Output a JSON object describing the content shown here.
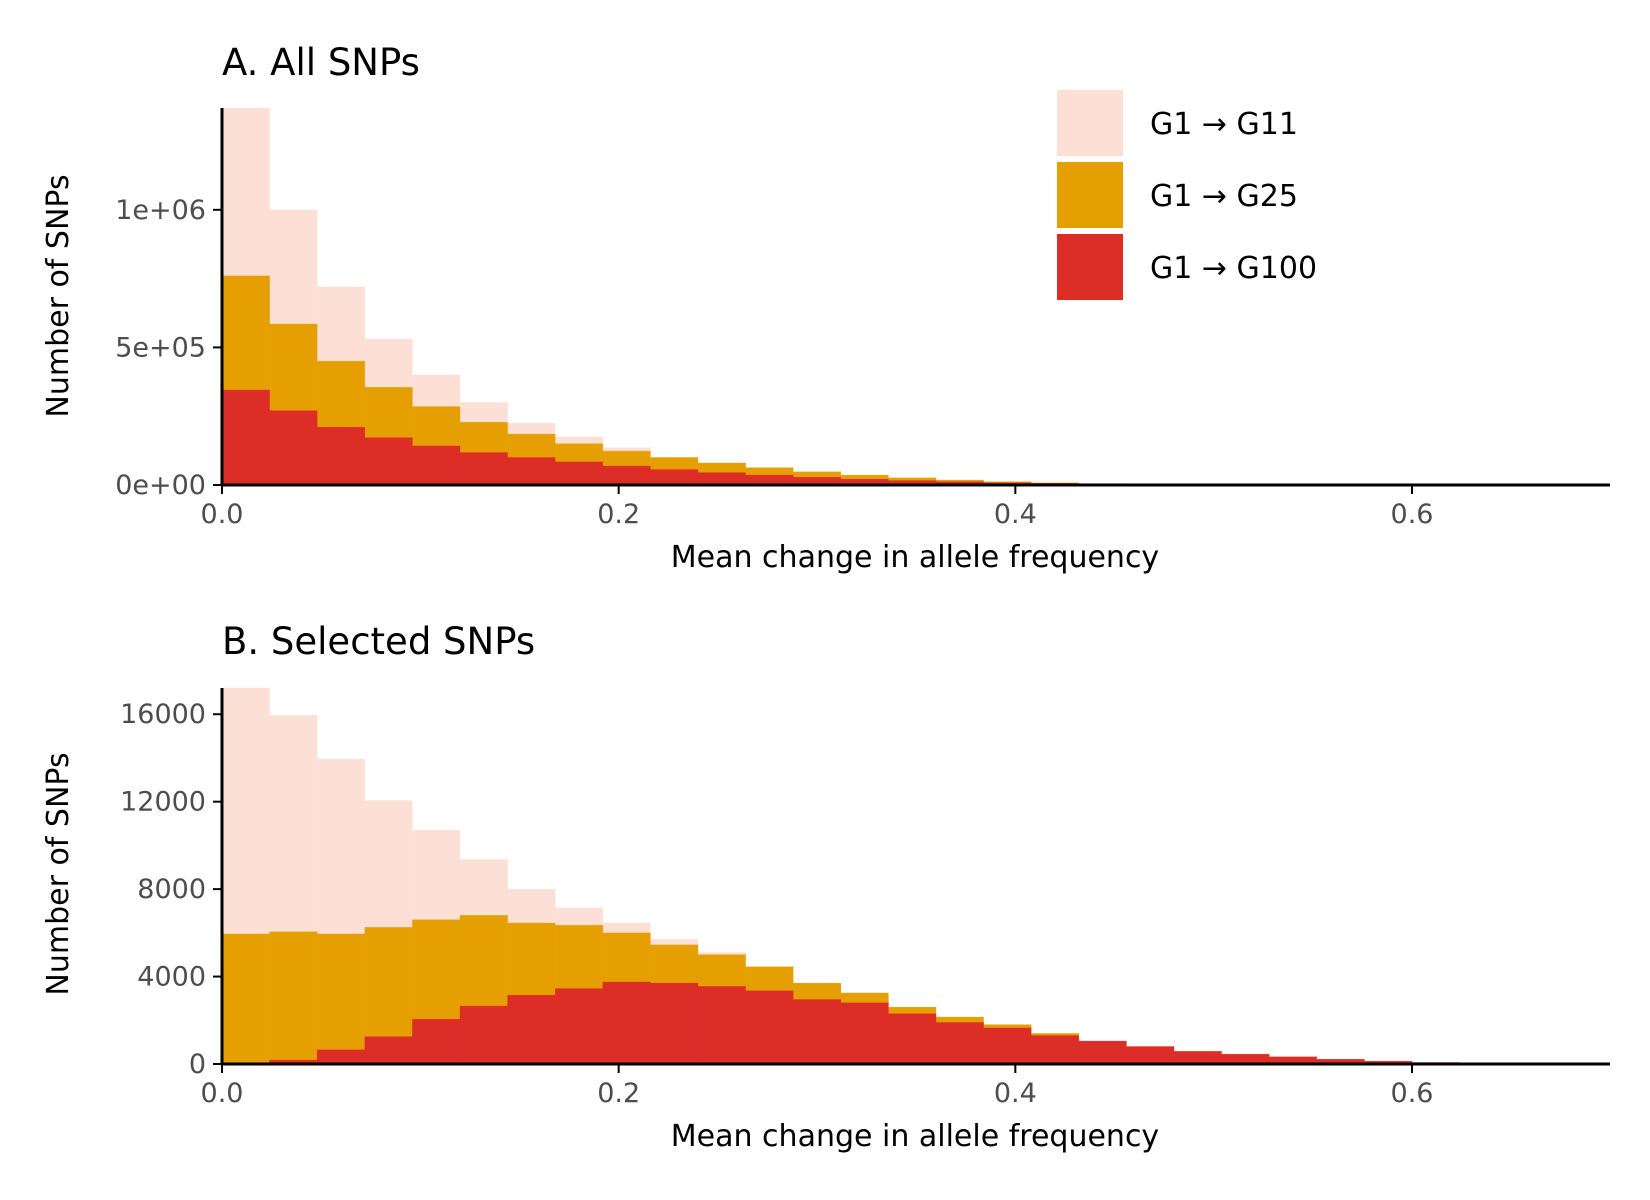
{
  "colors": {
    "G1 → G11": "#fde0d5",
    "G1 → G25": "#e69f00",
    "G1 → G100": "#dc2d27",
    "axis": "#000000",
    "tick_text": "#4d4d4d"
  },
  "legend": {
    "items": [
      "G1 → G11",
      "G1 → G25",
      "G1 → G100"
    ]
  },
  "chart_data": [
    {
      "type": "bar",
      "title": "A. All SNPs",
      "xlabel": "Mean change in allele frequency",
      "ylabel": "Number of SNPs",
      "bin_width": 0.024,
      "xlim": [
        0,
        0.7
      ],
      "ylim": [
        0,
        1370000
      ],
      "x_ticks": [
        "0.0",
        "0.2",
        "0.4",
        "0.6"
      ],
      "y_ticks": [
        "0e+00",
        "5e+05",
        "1e+06"
      ],
      "y_tick_values": [
        0,
        500000,
        1000000
      ],
      "overlaid": true,
      "bins_start": [
        0,
        0.024,
        0.048,
        0.072,
        0.096,
        0.12,
        0.144,
        0.168,
        0.192,
        0.216,
        0.24,
        0.264,
        0.288,
        0.312,
        0.336,
        0.36,
        0.384,
        0.408,
        0.432,
        0.456,
        0.48,
        0.504,
        0.528,
        0.552,
        0.576,
        0.6
      ],
      "series": [
        {
          "name": "G1 → G11",
          "values": [
            1370000,
            1000000,
            720000,
            530000,
            400000,
            300000,
            225000,
            175000,
            135000,
            100000,
            72000,
            52000,
            37000,
            26000,
            18000,
            12000,
            8000,
            5000,
            3000,
            2000,
            1200,
            800,
            500,
            300,
            200,
            100
          ]
        },
        {
          "name": "G1 → G25",
          "values": [
            760000,
            585000,
            450000,
            355000,
            285000,
            228000,
            185000,
            150000,
            123000,
            100000,
            80000,
            63000,
            48000,
            36000,
            26000,
            18000,
            12000,
            8000,
            5000,
            3000,
            2000,
            1200,
            700,
            400,
            200,
            100
          ]
        },
        {
          "name": "G1 → G100",
          "values": [
            345000,
            270000,
            210000,
            172000,
            142000,
            118000,
            100000,
            84000,
            69000,
            56000,
            45000,
            36000,
            28000,
            21000,
            16000,
            12000,
            8000,
            6000,
            4000,
            2500,
            1500,
            1000,
            600,
            400,
            200,
            100
          ]
        }
      ]
    },
    {
      "type": "bar",
      "title": "B. Selected SNPs",
      "xlabel": "Mean change in allele frequency",
      "ylabel": "Number of SNPs",
      "bin_width": 0.024,
      "xlim": [
        0,
        0.7
      ],
      "ylim": [
        0,
        17200
      ],
      "x_ticks": [
        "0.0",
        "0.2",
        "0.4",
        "0.6"
      ],
      "y_ticks": [
        "0",
        "4000",
        "8000",
        "12000",
        "16000"
      ],
      "y_tick_values": [
        0,
        4000,
        8000,
        12000,
        16000
      ],
      "overlaid": true,
      "bins_start": [
        0,
        0.024,
        0.048,
        0.072,
        0.096,
        0.12,
        0.144,
        0.168,
        0.192,
        0.216,
        0.24,
        0.264,
        0.288,
        0.312,
        0.336,
        0.36,
        0.384,
        0.408,
        0.432,
        0.456,
        0.48,
        0.504,
        0.528,
        0.552,
        0.576,
        0.6,
        0.624
      ],
      "series": [
        {
          "name": "G1 → G11",
          "values": [
            17200,
            15950,
            13950,
            12050,
            10700,
            9350,
            8000,
            7150,
            6450,
            5700,
            5100,
            4300,
            3600,
            3100,
            2500,
            2000,
            1600,
            1200,
            800,
            600,
            400,
            250,
            150,
            80,
            40,
            20,
            10
          ]
        },
        {
          "name": "G1 → G25",
          "values": [
            5950,
            6050,
            5950,
            6250,
            6600,
            6800,
            6450,
            6350,
            6000,
            5450,
            5000,
            4450,
            3700,
            3250,
            2600,
            2150,
            1800,
            1400,
            1000,
            700,
            450,
            300,
            180,
            100,
            50,
            25,
            10
          ]
        },
        {
          "name": "G1 → G100",
          "values": [
            0,
            180,
            650,
            1250,
            2050,
            2650,
            3150,
            3450,
            3750,
            3700,
            3550,
            3350,
            2950,
            2800,
            2300,
            1900,
            1650,
            1300,
            1050,
            800,
            580,
            450,
            330,
            220,
            130,
            70,
            30
          ]
        }
      ]
    }
  ]
}
